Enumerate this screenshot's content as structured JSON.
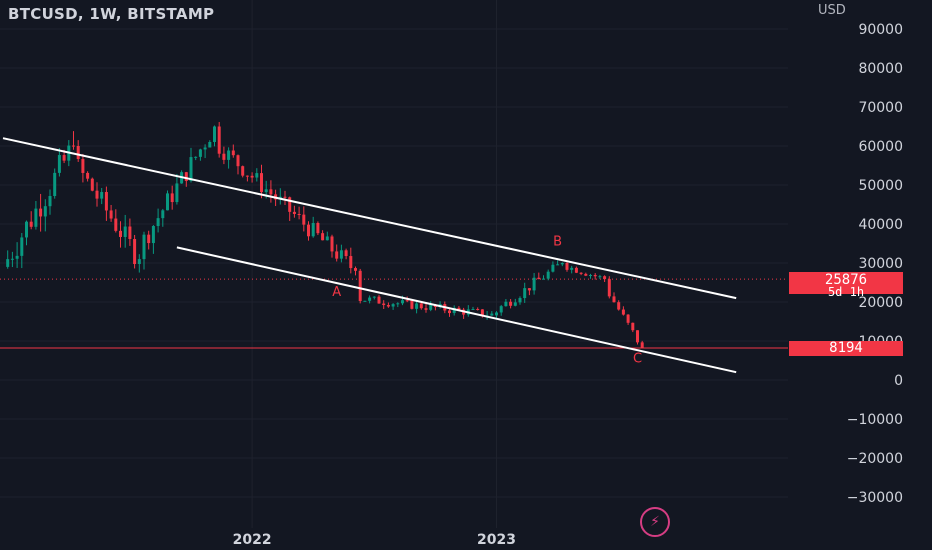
{
  "header": {
    "symbol_title": "BTCUSD, 1W, BITSTAMP",
    "currency": "USD"
  },
  "price_axis": {
    "labels": [
      "90000",
      "80000",
      "70000",
      "60000",
      "50000",
      "40000",
      "30000",
      "20000",
      "10000",
      "0",
      "−10000",
      "−20000",
      "−30000"
    ]
  },
  "time_axis": {
    "labels": [
      "2022",
      "2023"
    ]
  },
  "badges": {
    "last_price": "25876",
    "countdown": "5d 1h",
    "target_low": "8194"
  },
  "annotations": {
    "wave_a": "A",
    "wave_b": "B",
    "wave_c": "C"
  },
  "colors": {
    "background": "#131722",
    "up": "#089981",
    "down": "#f23645",
    "trendline": "#ffffff",
    "grid": "#1e222d",
    "logo": "#d53d83"
  },
  "logo": {
    "icon": "lightning-bolt-icon"
  },
  "chart_data": {
    "type": "candlestick",
    "title": "BTCUSD, 1W, BITSTAMP",
    "ylabel": "USD",
    "ylim": [
      -35000,
      92000
    ],
    "last_price": 25876,
    "projected_low": 8194,
    "segments": [
      {
        "from": "2021-01-04",
        "to": "2021-04-12",
        "weeks": 15,
        "start": 29000,
        "end": 60000,
        "noise": 5000
      },
      {
        "from": "2021-04-19",
        "to": "2021-07-19",
        "weeks": 14,
        "start": 56000,
        "end": 31000,
        "noise": 4000
      },
      {
        "from": "2021-07-26",
        "to": "2021-11-08",
        "weeks": 16,
        "start": 34000,
        "end": 65000,
        "noise": 3500
      },
      {
        "from": "2021-11-15",
        "to": "2022-06-06",
        "weeks": 30,
        "start": 61000,
        "end": 28000,
        "noise": 3000
      },
      {
        "from": "2022-06-13",
        "to": "2022-12-26",
        "weeks": 30,
        "start": 21000,
        "end": 16600,
        "noise": 1500
      },
      {
        "from": "2023-01-02",
        "to": "2023-04-10",
        "weeks": 15,
        "start": 17000,
        "end": 30000,
        "noise": 1800
      },
      {
        "from": "2023-04-17",
        "to": "2023-06-12",
        "weeks": 9,
        "start": 29500,
        "end": 25876,
        "noise": 1200
      },
      {
        "from": "2023-06-19",
        "to": "2023-08-07",
        "weeks": 8,
        "start": 24000,
        "end": 8194,
        "noise": 1500
      }
    ],
    "trendlines": [
      {
        "name": "upper-channel",
        "from": {
          "date": "2020-12-28",
          "price": 62000
        },
        "to": {
          "date": "2023-12-25",
          "price": 21000
        }
      },
      {
        "name": "lower-channel",
        "from": {
          "date": "2021-09-13",
          "price": 34000
        },
        "to": {
          "date": "2023-12-25",
          "price": 2000
        }
      }
    ],
    "horizontal_lines": [
      {
        "name": "target",
        "price": 8194
      }
    ],
    "labels": [
      {
        "text": "A",
        "date": "2022-05-09",
        "price": 21500
      },
      {
        "text": "B",
        "date": "2023-04-03",
        "price": 34500
      },
      {
        "text": "C",
        "date": "2023-07-31",
        "price": 4500
      }
    ]
  }
}
